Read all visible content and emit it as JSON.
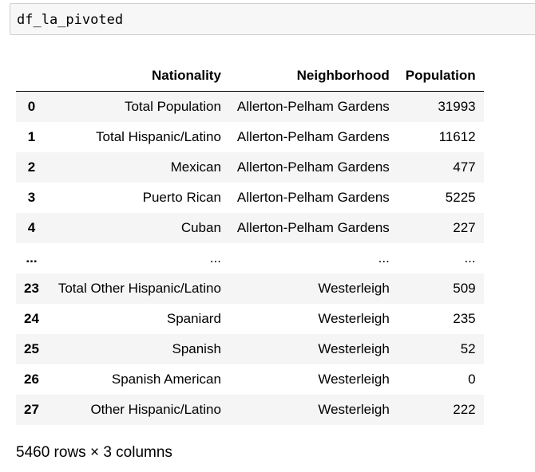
{
  "cell": {
    "code": "df_la_pivoted"
  },
  "table": {
    "columns": [
      "Nationality",
      "Neighborhood",
      "Population"
    ],
    "rows": [
      {
        "index": "0",
        "nationality": "Total Population",
        "neighborhood": "Allerton-Pelham Gardens",
        "population": "31993"
      },
      {
        "index": "1",
        "nationality": "Total Hispanic/Latino",
        "neighborhood": "Allerton-Pelham Gardens",
        "population": "11612"
      },
      {
        "index": "2",
        "nationality": "Mexican",
        "neighborhood": "Allerton-Pelham Gardens",
        "population": "477"
      },
      {
        "index": "3",
        "nationality": "Puerto Rican",
        "neighborhood": "Allerton-Pelham Gardens",
        "population": "5225"
      },
      {
        "index": "4",
        "nationality": "Cuban",
        "neighborhood": "Allerton-Pelham Gardens",
        "population": "227"
      },
      {
        "index": "...",
        "nationality": "...",
        "neighborhood": "...",
        "population": "..."
      },
      {
        "index": "23",
        "nationality": "Total Other Hispanic/Latino",
        "neighborhood": "Westerleigh",
        "population": "509"
      },
      {
        "index": "24",
        "nationality": "Spaniard",
        "neighborhood": "Westerleigh",
        "population": "235"
      },
      {
        "index": "25",
        "nationality": "Spanish",
        "neighborhood": "Westerleigh",
        "population": "52"
      },
      {
        "index": "26",
        "nationality": "Spanish American",
        "neighborhood": "Westerleigh",
        "population": "0"
      },
      {
        "index": "27",
        "nationality": "Other Hispanic/Latino",
        "neighborhood": "Westerleigh",
        "population": "222"
      }
    ]
  },
  "shape_caption": "5460 rows × 3 columns"
}
